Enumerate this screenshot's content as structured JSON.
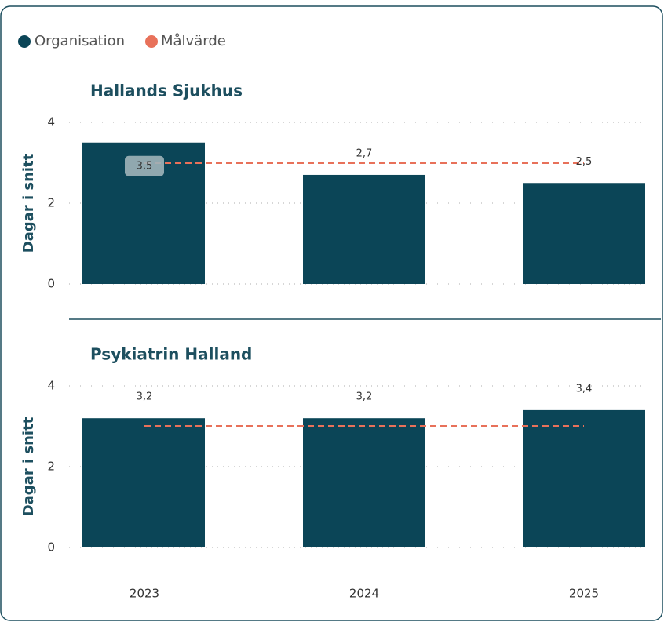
{
  "chart_data": {
    "type": "bar",
    "categories": [
      "2023",
      "2024",
      "2025"
    ],
    "ylabel": "Dagar i snitt",
    "ylim": [
      0,
      4
    ],
    "yticks": [
      0,
      2,
      4
    ],
    "grid": true,
    "legend": "top-left",
    "series": [
      {
        "name": "Organisation",
        "color": "#0b4557"
      },
      {
        "name": "Målvärde",
        "color": "#e8715a"
      }
    ],
    "panels": [
      {
        "title": "Hallands Sjukhus",
        "values": [
          3.5,
          2.7,
          2.5
        ],
        "value_labels": [
          "3,5",
          "2,7",
          "2,5"
        ],
        "target": [
          3,
          3,
          3
        ]
      },
      {
        "title": "Psykiatrin Halland",
        "values": [
          3.2,
          3.2,
          3.4
        ],
        "value_labels": [
          "3,2",
          "3,2",
          "3,4"
        ],
        "target": [
          3,
          3,
          3
        ]
      }
    ]
  }
}
